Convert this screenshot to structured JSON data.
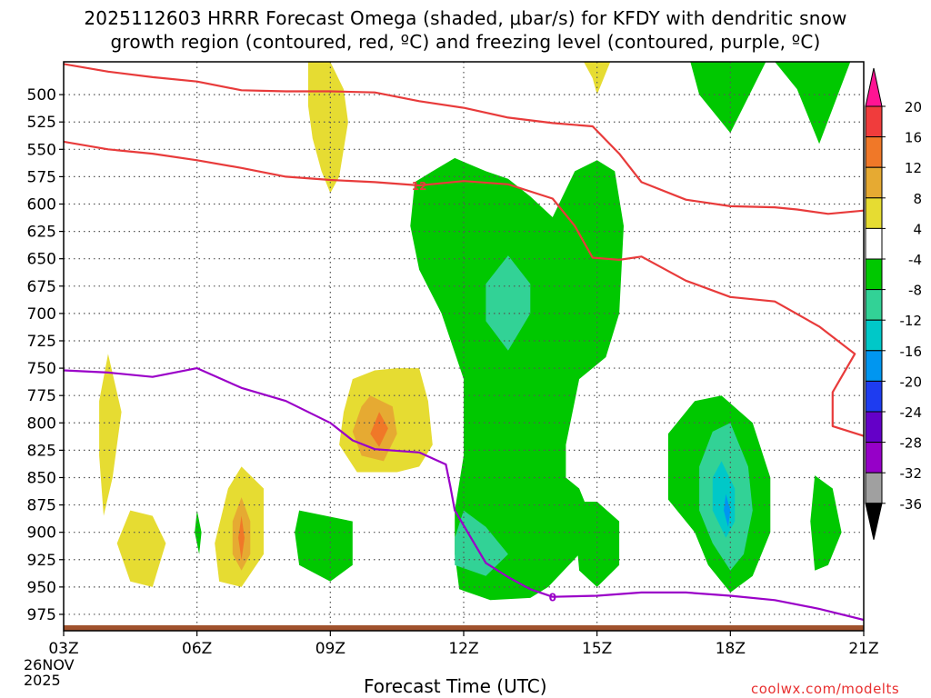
{
  "title_line1": "2025112603 HRRR Forecast Omega (shaded, μbar/s) for KFDY with dendritic snow",
  "title_line2": "growth region (contoured, red, ºC) and freezing level (contoured, purple, ºC)",
  "credit": "coolwx.com/modelts",
  "chart_data": {
    "type": "contour",
    "xlabel": "Forecast Time (UTC)",
    "x_ticks": [
      "03Z",
      "06Z",
      "09Z",
      "12Z",
      "15Z",
      "18Z",
      "21Z"
    ],
    "x_hours": [
      3,
      6,
      9,
      12,
      15,
      18,
      21
    ],
    "x_date_labels": [
      "26NOV",
      "2025"
    ],
    "xlim": [
      3,
      21
    ],
    "y_ticks": [
      500,
      525,
      550,
      575,
      600,
      625,
      650,
      675,
      700,
      725,
      750,
      775,
      800,
      825,
      850,
      875,
      900,
      925,
      950,
      975
    ],
    "ylim": [
      470,
      985
    ],
    "grid": true,
    "colorbar": {
      "labels": [
        "20",
        "16",
        "12",
        "8",
        "4",
        "-4",
        "-8",
        "-12",
        "-16",
        "-20",
        "-24",
        "-28",
        "-32",
        "-36"
      ],
      "colors": [
        "#ff1493",
        "#f03c3c",
        "#f07828",
        "#e6aa32",
        "#e6dc32",
        "#ffffff",
        "#00c800",
        "#32d296",
        "#00c8c8",
        "#0096f0",
        "#1e3cf0",
        "#6400c8",
        "#9600c8",
        "#a0a0a0",
        "#000000"
      ]
    },
    "contour_labels": {
      "dgz": "12",
      "freezing": "0"
    },
    "series": [
      {
        "kind": "dgz_contour",
        "color": "#e83b3b",
        "points": [
          [
            3,
            472
          ],
          [
            4,
            479
          ],
          [
            5,
            484
          ],
          [
            6,
            488
          ],
          [
            7,
            496
          ],
          [
            8,
            497
          ],
          [
            9,
            497
          ],
          [
            10,
            498
          ],
          [
            11,
            506
          ],
          [
            12,
            512
          ],
          [
            13,
            521
          ],
          [
            14,
            526
          ],
          [
            14.9,
            529
          ],
          [
            15.5,
            554
          ],
          [
            16,
            580
          ],
          [
            17,
            596
          ],
          [
            18,
            602
          ],
          [
            19,
            603
          ],
          [
            19.5,
            605
          ],
          [
            20.2,
            609
          ],
          [
            21,
            606
          ]
        ]
      },
      {
        "kind": "dgz_contour",
        "color": "#e83b3b",
        "points": [
          [
            3,
            543
          ],
          [
            4,
            550
          ],
          [
            5,
            554
          ],
          [
            6,
            560
          ],
          [
            7,
            567
          ],
          [
            8,
            575
          ],
          [
            9,
            578
          ],
          [
            10,
            580
          ],
          [
            11,
            583
          ],
          [
            12,
            579
          ],
          [
            13,
            582
          ],
          [
            14,
            595
          ],
          [
            14.5,
            620
          ],
          [
            14.9,
            649
          ],
          [
            15.5,
            651
          ],
          [
            16,
            648
          ],
          [
            17,
            670
          ],
          [
            18,
            685
          ],
          [
            19,
            689
          ],
          [
            20,
            712
          ],
          [
            20.8,
            737
          ],
          [
            20.3,
            772
          ],
          [
            20.3,
            803
          ],
          [
            21,
            812
          ]
        ]
      },
      {
        "kind": "freezing_level",
        "color": "#9a00c8",
        "points": [
          [
            3,
            752
          ],
          [
            4,
            754
          ],
          [
            5,
            758
          ],
          [
            6,
            750
          ],
          [
            7,
            768
          ],
          [
            8,
            780
          ],
          [
            9,
            800
          ],
          [
            9.5,
            816
          ],
          [
            10,
            824
          ],
          [
            11,
            827
          ],
          [
            11.6,
            838
          ],
          [
            11.7,
            858
          ],
          [
            11.8,
            880
          ],
          [
            12.5,
            928
          ],
          [
            13,
            941
          ],
          [
            13.5,
            952
          ],
          [
            14,
            959
          ],
          [
            15,
            958
          ],
          [
            16,
            955
          ],
          [
            17,
            955
          ],
          [
            18,
            958
          ],
          [
            19,
            962
          ],
          [
            20,
            970
          ],
          [
            21,
            980
          ]
        ]
      }
    ],
    "shaded_regions": [
      {
        "value": 4,
        "color": "#e6dc32",
        "points": [
          [
            9,
            470
          ],
          [
            9.3,
            495
          ],
          [
            9.4,
            525
          ],
          [
            9.3,
            550
          ],
          [
            9.2,
            575
          ],
          [
            9,
            590
          ],
          [
            8.8,
            570
          ],
          [
            8.6,
            540
          ],
          [
            8.5,
            510
          ],
          [
            8.5,
            470
          ]
        ]
      },
      {
        "value": 4,
        "color": "#e6dc32",
        "points": [
          [
            14.7,
            470
          ],
          [
            14.9,
            485
          ],
          [
            15,
            500
          ],
          [
            15.15,
            485
          ],
          [
            15.3,
            470
          ]
        ]
      },
      {
        "value": -4,
        "color": "#00c800",
        "points": [
          [
            11.8,
            558
          ],
          [
            12.5,
            570
          ],
          [
            13,
            577
          ],
          [
            13.5,
            593
          ],
          [
            14,
            612
          ],
          [
            14.5,
            570
          ],
          [
            15,
            560
          ],
          [
            15.4,
            570
          ],
          [
            15.6,
            620
          ],
          [
            15.5,
            700
          ],
          [
            15.2,
            740
          ],
          [
            14.6,
            760
          ],
          [
            14.4,
            800
          ],
          [
            14.3,
            820
          ],
          [
            14.3,
            850
          ],
          [
            14.6,
            860
          ],
          [
            14.8,
            880
          ],
          [
            14.6,
            920
          ],
          [
            13.9,
            950
          ],
          [
            13.5,
            960
          ],
          [
            12.6,
            962
          ],
          [
            11.9,
            952
          ],
          [
            11.8,
            920
          ],
          [
            11.8,
            880
          ],
          [
            12,
            830
          ],
          [
            12,
            760
          ],
          [
            11.5,
            700
          ],
          [
            11,
            660
          ],
          [
            10.8,
            620
          ],
          [
            10.9,
            580
          ],
          [
            11.3,
            570
          ]
        ]
      },
      {
        "value": -8,
        "color": "#32d296",
        "points": [
          [
            13,
            647
          ],
          [
            13.5,
            673
          ],
          [
            13.5,
            700
          ],
          [
            13,
            734
          ],
          [
            12.5,
            707
          ],
          [
            12.5,
            673
          ]
        ]
      },
      {
        "value": -8,
        "color": "#32d296",
        "points": [
          [
            12,
            880
          ],
          [
            12.5,
            895
          ],
          [
            13,
            920
          ],
          [
            12.5,
            940
          ],
          [
            11.8,
            930
          ],
          [
            11.8,
            905
          ]
        ]
      },
      {
        "value": -4,
        "color": "#00c800",
        "points": [
          [
            17.1,
            470
          ],
          [
            18,
            470
          ],
          [
            19.2,
            470
          ],
          [
            20.7,
            470
          ],
          [
            20,
            545
          ],
          [
            19.5,
            495
          ],
          [
            19,
            470
          ],
          [
            18.8,
            470
          ],
          [
            18,
            535
          ],
          [
            17.3,
            500
          ]
        ]
      },
      {
        "value": -4,
        "color": "#00c800",
        "points": [
          [
            17.8,
            775
          ],
          [
            18.5,
            800
          ],
          [
            18.9,
            850
          ],
          [
            18.9,
            900
          ],
          [
            18.5,
            940
          ],
          [
            18,
            955
          ],
          [
            17.5,
            930
          ],
          [
            17.2,
            900
          ],
          [
            16.6,
            870
          ],
          [
            16.6,
            810
          ],
          [
            17.2,
            780
          ]
        ]
      },
      {
        "value": -8,
        "color": "#32d296",
        "points": [
          [
            18,
            800
          ],
          [
            18.4,
            840
          ],
          [
            18.5,
            880
          ],
          [
            18.3,
            920
          ],
          [
            18,
            935
          ],
          [
            17.6,
            910
          ],
          [
            17.3,
            880
          ],
          [
            17.3,
            840
          ],
          [
            17.6,
            808
          ]
        ]
      },
      {
        "value": -12,
        "color": "#00c8c8",
        "points": [
          [
            17.8,
            835
          ],
          [
            18.1,
            860
          ],
          [
            18.1,
            890
          ],
          [
            17.9,
            905
          ],
          [
            17.6,
            880
          ],
          [
            17.6,
            850
          ]
        ]
      },
      {
        "value": -16,
        "color": "#0096f0",
        "points": [
          [
            17.9,
            865
          ],
          [
            18,
            880
          ],
          [
            17.95,
            895
          ],
          [
            17.85,
            880
          ]
        ]
      },
      {
        "value": -4,
        "color": "#00c800",
        "points": [
          [
            15,
            872
          ],
          [
            15.5,
            890
          ],
          [
            15.5,
            930
          ],
          [
            15,
            950
          ],
          [
            14.6,
            935
          ],
          [
            14.5,
            890
          ],
          [
            14.7,
            872
          ]
        ]
      },
      {
        "value": -4,
        "color": "#00c800",
        "points": [
          [
            8.3,
            880
          ],
          [
            9.5,
            890
          ],
          [
            9.5,
            930
          ],
          [
            9,
            945
          ],
          [
            8.3,
            930
          ],
          [
            8.2,
            900
          ]
        ]
      },
      {
        "value": -4,
        "color": "#00c800",
        "points": [
          [
            19.9,
            848
          ],
          [
            20.3,
            860
          ],
          [
            20.5,
            900
          ],
          [
            20.2,
            930
          ],
          [
            19.9,
            935
          ],
          [
            19.8,
            890
          ]
        ]
      },
      {
        "value": -4,
        "color": "#00c800",
        "points": [
          [
            6,
            880
          ],
          [
            6.1,
            900
          ],
          [
            6.05,
            920
          ],
          [
            5.95,
            900
          ]
        ]
      },
      {
        "value": 4,
        "color": "#e6dc32",
        "points": [
          [
            9.5,
            760
          ],
          [
            10,
            752
          ],
          [
            10.5,
            750
          ],
          [
            11,
            750
          ],
          [
            11.2,
            780
          ],
          [
            11.3,
            820
          ],
          [
            11,
            840
          ],
          [
            10.5,
            845
          ],
          [
            9.6,
            845
          ],
          [
            9.2,
            820
          ],
          [
            9.3,
            790
          ]
        ]
      },
      {
        "value": 8,
        "color": "#e6aa32",
        "points": [
          [
            9.9,
            775
          ],
          [
            10.4,
            785
          ],
          [
            10.5,
            810
          ],
          [
            10.2,
            835
          ],
          [
            9.7,
            830
          ],
          [
            9.5,
            808
          ],
          [
            9.7,
            785
          ]
        ]
      },
      {
        "value": 12,
        "color": "#f07828",
        "points": [
          [
            10.1,
            790
          ],
          [
            10.3,
            805
          ],
          [
            10.1,
            822
          ],
          [
            9.9,
            810
          ]
        ]
      },
      {
        "value": 4,
        "color": "#e6dc32",
        "points": [
          [
            4,
            737
          ],
          [
            4.3,
            790
          ],
          [
            4.1,
            850
          ],
          [
            3.9,
            885
          ],
          [
            3.8,
            830
          ],
          [
            3.8,
            780
          ]
        ]
      },
      {
        "value": 4,
        "color": "#e6dc32",
        "points": [
          [
            4.5,
            880
          ],
          [
            5,
            885
          ],
          [
            5.3,
            910
          ],
          [
            5,
            950
          ],
          [
            4.5,
            945
          ],
          [
            4.2,
            910
          ]
        ]
      },
      {
        "value": 4,
        "color": "#e6dc32",
        "points": [
          [
            7,
            840
          ],
          [
            7.5,
            860
          ],
          [
            7.5,
            920
          ],
          [
            7,
            950
          ],
          [
            6.5,
            945
          ],
          [
            6.4,
            910
          ],
          [
            6.7,
            860
          ]
        ]
      },
      {
        "value": 8,
        "color": "#e6aa32",
        "points": [
          [
            7,
            868
          ],
          [
            7.2,
            890
          ],
          [
            7.2,
            920
          ],
          [
            7,
            935
          ],
          [
            6.8,
            920
          ],
          [
            6.8,
            890
          ]
        ]
      },
      {
        "value": 12,
        "color": "#f07828",
        "points": [
          [
            7,
            885
          ],
          [
            7.07,
            905
          ],
          [
            7,
            925
          ],
          [
            6.93,
            905
          ]
        ]
      }
    ]
  }
}
